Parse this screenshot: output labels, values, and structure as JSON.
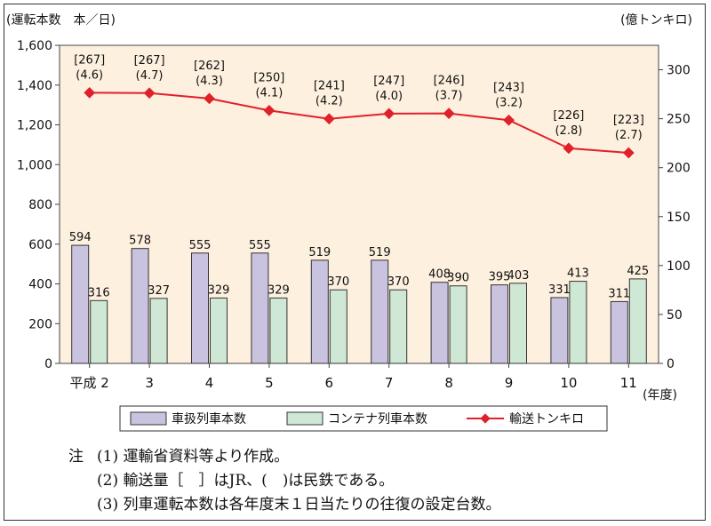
{
  "chart_data": {
    "type": "bar+line",
    "left_axis_label": "(運転本数　本／日)",
    "right_axis_label": "(億トンキロ)",
    "x_unit_label": "(年度)",
    "categories": [
      "平成 2",
      "3",
      "4",
      "5",
      "6",
      "7",
      "8",
      "9",
      "10",
      "11"
    ],
    "left_ylim": [
      0,
      1600
    ],
    "left_ticks": [
      "0",
      "200",
      "400",
      "600",
      "800",
      "1,000",
      "1,200",
      "1,400",
      "1,600"
    ],
    "right_ylim": [
      0,
      325
    ],
    "right_ticks": [
      "0",
      "50",
      "100",
      "150",
      "200",
      "250",
      "300"
    ],
    "series": [
      {
        "name": "車扱列車本数",
        "kind": "bar",
        "axis": "left",
        "color": "#c9c3e0",
        "values": [
          594,
          578,
          555,
          555,
          519,
          519,
          408,
          395,
          331,
          311
        ]
      },
      {
        "name": "コンテナ列車本数",
        "kind": "bar",
        "axis": "left",
        "color": "#cfe8d6",
        "values": [
          316,
          327,
          329,
          329,
          370,
          370,
          390,
          403,
          413,
          425
        ]
      },
      {
        "name": "輸送トンキロ",
        "kind": "line",
        "axis": "right",
        "color": "#e0202a",
        "values": [
          276.5,
          276.2,
          270.6,
          258.4,
          249.9,
          255.2,
          255.4,
          248.5,
          219.8,
          215.2
        ]
      }
    ],
    "jr_labels": [
      "[267]",
      "[267]",
      "[262]",
      "[250]",
      "[241]",
      "[247]",
      "[246]",
      "[243]",
      "[226]",
      "[223]"
    ],
    "private_labels": [
      "(4.6)",
      "(4.7)",
      "(4.3)",
      "(4.1)",
      "(4.2)",
      "(4.0)",
      "(3.7)",
      "(3.2)",
      "(2.8)",
      "(2.7)"
    ],
    "plot_bg": "#fdf0de",
    "grid": false
  },
  "notes": {
    "prefix": "注",
    "items": [
      {
        "num": "(1)",
        "text": "運輸省資料等より作成。"
      },
      {
        "num": "(2)",
        "text": "輸送量［　］はJR、(　)は民鉄である。"
      },
      {
        "num": "(3)",
        "text": "列車運転本数は各年度末１日当たりの往復の設定台数。"
      }
    ]
  }
}
